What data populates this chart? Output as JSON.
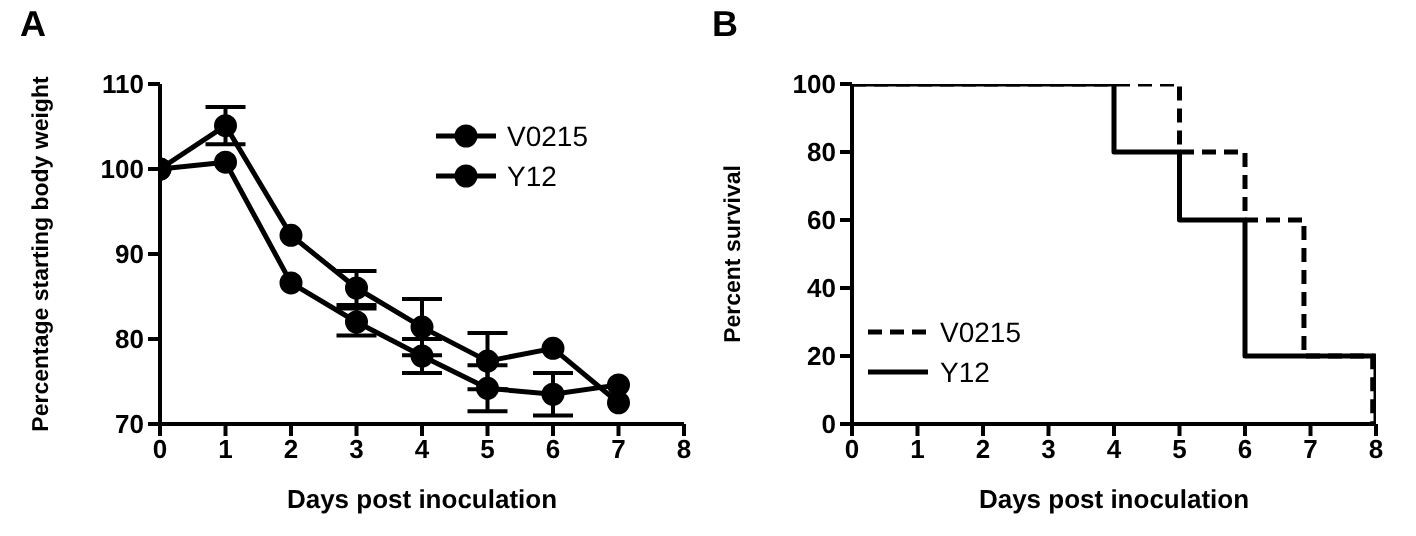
{
  "chart_data": [
    {
      "type": "line",
      "annotations": [
        "A"
      ],
      "xlabel": "Days post inoculation",
      "ylabel": "Percentage starting body weight",
      "x": [
        0,
        1,
        2,
        3,
        4,
        5,
        6,
        7
      ],
      "xlim": [
        0,
        8
      ],
      "xticks": [
        0,
        1,
        2,
        3,
        4,
        5,
        6,
        7,
        8
      ],
      "ylim": [
        70,
        110
      ],
      "yticks": [
        70,
        80,
        90,
        100,
        110
      ],
      "marker": "circle",
      "legend": "top right",
      "grid": false,
      "series": [
        {
          "name": "V0215",
          "color": "#000000",
          "values": [
            100,
            100.8,
            86.6,
            82,
            78,
            74.2,
            73.5,
            74.6
          ],
          "errors": [
            null,
            null,
            null,
            1.6,
            2,
            2.7,
            2.5,
            null
          ]
        },
        {
          "name": "Y12",
          "color": "#000000",
          "values": [
            100,
            105.1,
            92.2,
            86,
            81.4,
            77.4,
            78.9,
            72.5
          ],
          "errors": [
            null,
            2.2,
            null,
            2,
            3.3,
            3.3,
            null,
            null
          ]
        }
      ]
    },
    {
      "type": "step",
      "annotations": [
        "B"
      ],
      "xlabel": "Days post inoculation",
      "ylabel": "Percent survival",
      "xlim": [
        0,
        8
      ],
      "xticks": [
        0,
        1,
        2,
        3,
        4,
        5,
        6,
        7,
        8
      ],
      "ylim": [
        0,
        100
      ],
      "yticks": [
        0,
        20,
        40,
        60,
        80,
        100
      ],
      "legend": "bottom left",
      "grid": false,
      "series": [
        {
          "name": "V0215",
          "color": "#000000",
          "line_style": "dashed",
          "x": [
            0,
            5,
            6,
            6.9,
            7.95
          ],
          "values": [
            100,
            80,
            60,
            20,
            0
          ]
        },
        {
          "name": "Y12",
          "color": "#000000",
          "line_style": "solid",
          "x": [
            0,
            4,
            5,
            6,
            8
          ],
          "values": [
            100,
            80,
            60,
            20,
            0
          ]
        }
      ]
    }
  ]
}
